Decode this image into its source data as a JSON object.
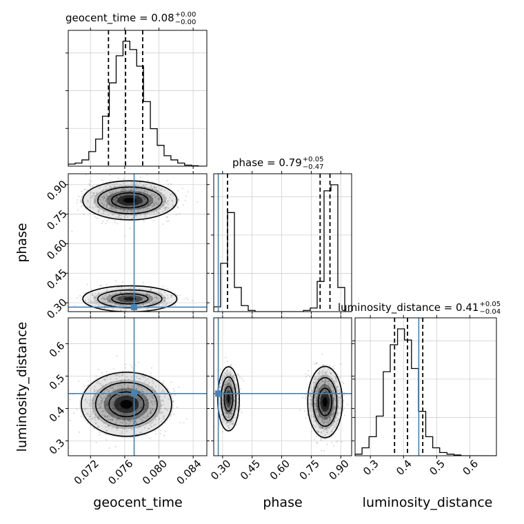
{
  "chart_data": {
    "type": "corner",
    "parameters": [
      "geocent_time",
      "phase",
      "luminosity_distance"
    ],
    "titles": [
      {
        "param": "geocent_time",
        "text": "geocent_time = 0.08",
        "plus": "+0.00",
        "minus": "−0.00"
      },
      {
        "param": "phase",
        "text": "phase = 0.79",
        "plus": "+0.05",
        "minus": "−0.47"
      },
      {
        "param": "luminosity_distance",
        "text": "luminosity_distance = 0.41",
        "plus": "+0.05",
        "minus": "−0.04"
      }
    ],
    "axis_labels": {
      "x": [
        "geocent_time",
        "phase",
        "luminosity_distance"
      ],
      "y": [
        "phase",
        "luminosity_distance"
      ]
    },
    "ranges": {
      "geocent_time": [
        0.0694,
        0.0856
      ],
      "phase": [
        0.255,
        0.955
      ],
      "luminosity_distance": [
        0.254,
        0.68
      ]
    },
    "ticks": {
      "geocent_time": {
        "values": [
          0.072,
          0.076,
          0.08,
          0.084
        ],
        "labels": [
          "0.072",
          "0.076",
          "0.080",
          "0.084"
        ]
      },
      "phase": {
        "values": [
          0.3,
          0.45,
          0.6,
          0.75,
          0.9
        ],
        "labels": [
          "0.30",
          "0.45",
          "0.60",
          "0.75",
          "0.90"
        ]
      },
      "luminosity_distance": {
        "values": [
          0.3,
          0.4,
          0.5,
          0.6
        ],
        "labels": [
          "0.3",
          "0.4",
          "0.5",
          "0.6"
        ]
      }
    },
    "truths": {
      "geocent_time": 0.0771,
      "phase": 0.278,
      "luminosity_distance": 0.446
    },
    "quantiles": {
      "geocent_time": [
        0.0741,
        0.0761,
        0.0781
      ],
      "phase": [
        0.325,
        0.795,
        0.845
      ],
      "luminosity_distance": [
        0.373,
        0.412,
        0.458
      ]
    },
    "histograms": {
      "geocent_time": {
        "edges": [
          0.0694,
          0.0702,
          0.071,
          0.0718,
          0.0726,
          0.0734,
          0.0742,
          0.075,
          0.0758,
          0.0766,
          0.0774,
          0.0782,
          0.079,
          0.0798,
          0.0806,
          0.0814,
          0.0822,
          0.083,
          0.0838,
          0.0846,
          0.0856
        ],
        "counts": [
          1,
          1.5,
          3,
          7,
          13,
          24,
          40,
          53,
          60,
          56,
          48,
          31,
          18,
          10,
          5,
          3,
          1.5,
          0.5,
          0.2,
          0
        ]
      },
      "phase": {
        "edges": [
          0.255,
          0.29,
          0.325,
          0.36,
          0.395,
          0.43,
          0.465,
          0.5,
          0.535,
          0.57,
          0.605,
          0.64,
          0.675,
          0.71,
          0.745,
          0.78,
          0.815,
          0.85,
          0.885,
          0.92,
          0.955
        ],
        "counts": [
          4,
          40,
          82,
          20,
          5,
          1,
          0,
          0,
          0,
          0,
          0,
          0,
          0,
          1,
          3,
          25,
          100,
          105,
          20,
          0
        ]
      },
      "luminosity_distance": {
        "edges": [
          0.254,
          0.275,
          0.296,
          0.318,
          0.339,
          0.36,
          0.382,
          0.403,
          0.424,
          0.445,
          0.467,
          0.488,
          0.509,
          0.531,
          0.552,
          0.573,
          0.594,
          0.616,
          0.637,
          0.658,
          0.68
        ],
        "counts": [
          1,
          5,
          12,
          25,
          53,
          70,
          80,
          73,
          55,
          28,
          12,
          5,
          2,
          1,
          0.5,
          0,
          0,
          0,
          0,
          0
        ]
      }
    },
    "modes_2d": {
      "phase_vs_geocent_time": [
        {
          "x": 0.0766,
          "y": 0.82,
          "w": 1.0
        },
        {
          "x": 0.0766,
          "y": 0.32,
          "w": 0.45
        }
      ],
      "luminosity_distance_vs_geocent_time": [
        {
          "x": 0.0762,
          "y": 0.413,
          "w": 1.0
        }
      ],
      "luminosity_distance_vs_phase": [
        {
          "x": 0.33,
          "y": 0.43,
          "w": 0.55
        },
        {
          "x": 0.82,
          "y": 0.42,
          "w": 1.0
        }
      ]
    },
    "grid": true
  }
}
